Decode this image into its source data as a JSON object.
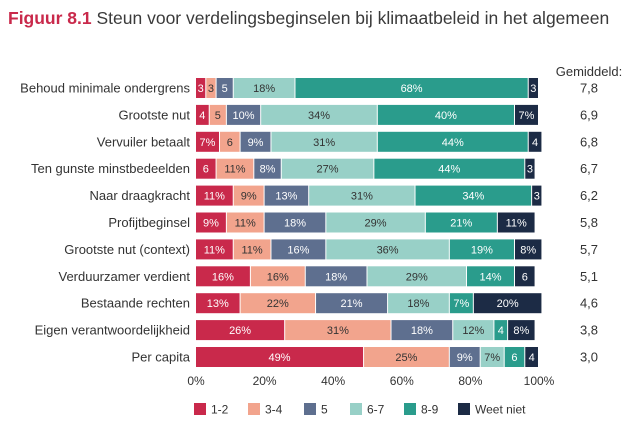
{
  "figure": {
    "number": "Figuur 8.1",
    "title": "Steun voor verdelingsbeginselen bij klimaatbeleid in het algemeen"
  },
  "colors": [
    "#c9294b",
    "#f2a48d",
    "#5e6f8f",
    "#98d0c7",
    "#2a9c8c",
    "#1c2b45"
  ],
  "chart_data": {
    "type": "bar",
    "orientation": "horizontal",
    "stacked": true,
    "categories": [
      "Behoud minimale ondergrens",
      "Grootste nut",
      "Vervuiler betaalt",
      "Ten gunste minstbedeelden",
      "Naar draagkracht",
      "Profijtbeginsel",
      "Grootste nut (context)",
      "Verduurzamer verdient",
      "Bestaande rechten",
      "Eigen verantwoordelijkheid",
      "Per capita"
    ],
    "series": [
      {
        "name": "1-2",
        "values": [
          3,
          4,
          7,
          6,
          11,
          9,
          11,
          16,
          13,
          26,
          49
        ]
      },
      {
        "name": "3-4",
        "values": [
          3,
          5,
          6,
          11,
          9,
          11,
          11,
          16,
          22,
          31,
          25
        ]
      },
      {
        "name": "5",
        "values": [
          5,
          10,
          9,
          8,
          13,
          18,
          16,
          18,
          21,
          18,
          9
        ]
      },
      {
        "name": "6-7",
        "values": [
          18,
          34,
          31,
          27,
          31,
          29,
          36,
          29,
          18,
          12,
          7
        ]
      },
      {
        "name": "8-9",
        "values": [
          68,
          40,
          44,
          44,
          34,
          21,
          19,
          14,
          7,
          4,
          6
        ]
      },
      {
        "name": "Weet niet",
        "values": [
          3,
          7,
          4,
          3,
          3,
          11,
          8,
          6,
          20,
          8,
          4
        ]
      }
    ],
    "gemiddeld_label": "Gemiddeld:",
    "gemiddeld": [
      "7,8",
      "6,9",
      "6,8",
      "6,7",
      "6,2",
      "5,8",
      "5,7",
      "5,1",
      "4,6",
      "3,8",
      "3,0"
    ],
    "xlim": [
      0,
      100
    ],
    "xticks": [
      "0%",
      "20%",
      "40%",
      "60%",
      "80%",
      "100%"
    ],
    "legend_position": "bottom"
  }
}
